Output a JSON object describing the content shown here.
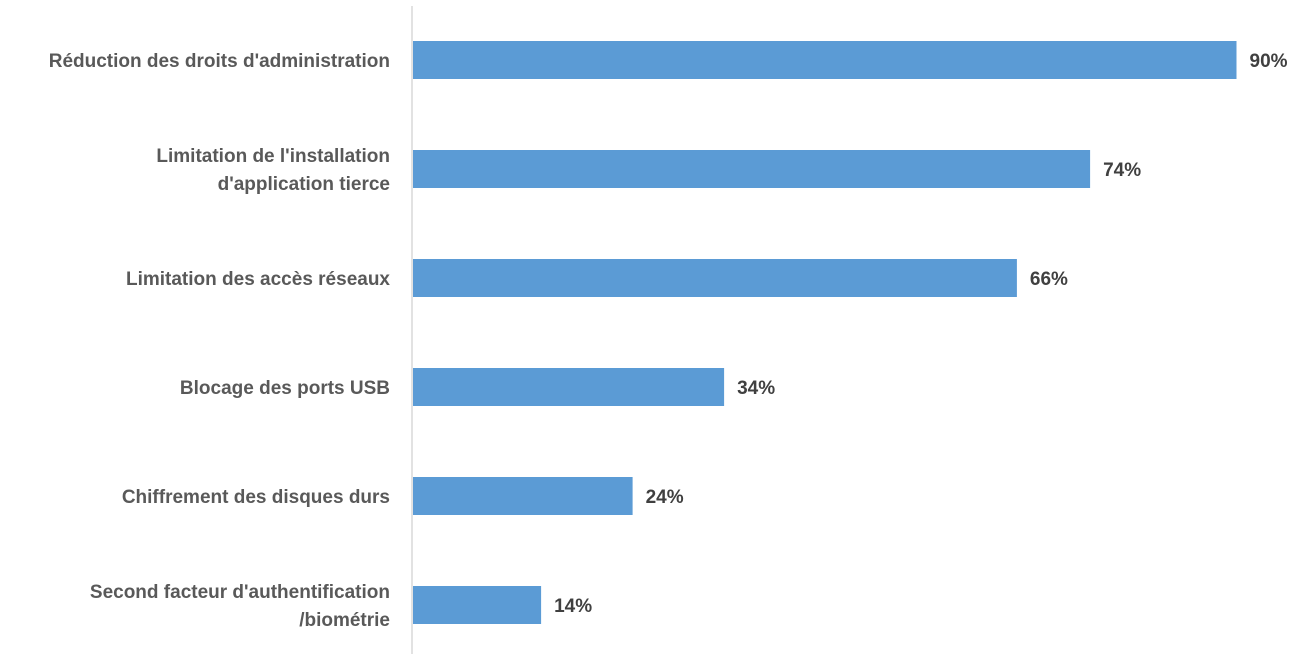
{
  "chart_data": {
    "type": "bar",
    "orientation": "horizontal",
    "categories": [
      [
        "Réduction des droits d'administration"
      ],
      [
        "Limitation de l'installation",
        "d'application tierce"
      ],
      [
        "Limitation des accès réseaux"
      ],
      [
        "Blocage des ports USB"
      ],
      [
        "Chiffrement des disques durs"
      ],
      [
        "Second facteur d'authentification",
        "/biométrie"
      ]
    ],
    "values": [
      90,
      74,
      66,
      34,
      24,
      14
    ],
    "value_labels": [
      "90%",
      "74%",
      "66%",
      "34%",
      "24%",
      "14%"
    ],
    "unit": "%",
    "xlim": [
      0,
      100
    ],
    "grid": false,
    "legend": "none",
    "bar_color": "#5B9BD5",
    "axis_color": "#D9D9D9"
  }
}
